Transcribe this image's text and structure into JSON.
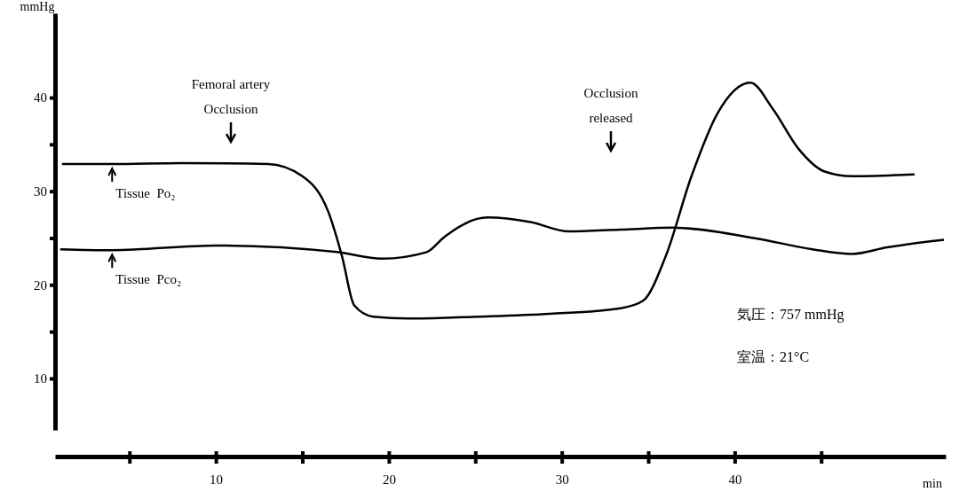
{
  "chart_data": {
    "type": "line",
    "xlabel": "min",
    "ylabel": "mmHg",
    "xlim": [
      0.7,
      52.2
    ],
    "ylim": [
      4.5,
      49
    ],
    "xticks": [
      {
        "value": 5,
        "label": null
      },
      10,
      {
        "value": 15,
        "label": null
      },
      20,
      {
        "value": 25,
        "label": null
      },
      30,
      {
        "value": 35,
        "label": null
      },
      40,
      {
        "value": 45,
        "label": null
      }
    ],
    "yticks": [
      10,
      {
        "value": 15,
        "label": null
      },
      20,
      {
        "value": 25,
        "label": null
      },
      30,
      {
        "value": 35,
        "label": null
      },
      40
    ],
    "grid": false,
    "legend": "left",
    "marker": "none",
    "line_style": "solid",
    "series": [
      {
        "name": "Tissue Po₂",
        "color": "#000000",
        "x": [
          1.1,
          4,
          8,
          13,
          15,
          16.5,
          17.3,
          18,
          19.1,
          21.1,
          25.2,
          29.3,
          33.4,
          34.7,
          36,
          37.5,
          39,
          40.9,
          42.2,
          43.7,
          45.2,
          46.8,
          50.4
        ],
        "values": [
          32.9,
          32.9,
          33,
          32.9,
          31.6,
          27.8,
          23,
          17.8,
          16.6,
          16.4,
          16.6,
          16.9,
          17.5,
          18.3,
          23,
          31.6,
          38.3,
          41.6,
          38.8,
          34.5,
          32.1,
          31.6,
          31.8
        ]
      },
      {
        "name": "Tissue Pco₂",
        "color": "#000000",
        "x": [
          1,
          4,
          10,
          17,
          19.6,
          22.2,
          23.2,
          25.7,
          28.2,
          30.4,
          33.4,
          36.5,
          41.1,
          44.5,
          46.8,
          48.8,
          52.1
        ],
        "values": [
          23.8,
          23.7,
          24.2,
          23.5,
          22.8,
          23.5,
          25.1,
          27.2,
          26.7,
          25.7,
          25.9,
          26.1,
          25,
          23.8,
          23.3,
          24,
          24.8
        ]
      }
    ],
    "annotations": [
      "Femoral artery\nOcclusion",
      "Occlusion\nreleased",
      "気圧：757 mmHg",
      "室温：21°C"
    ]
  }
}
